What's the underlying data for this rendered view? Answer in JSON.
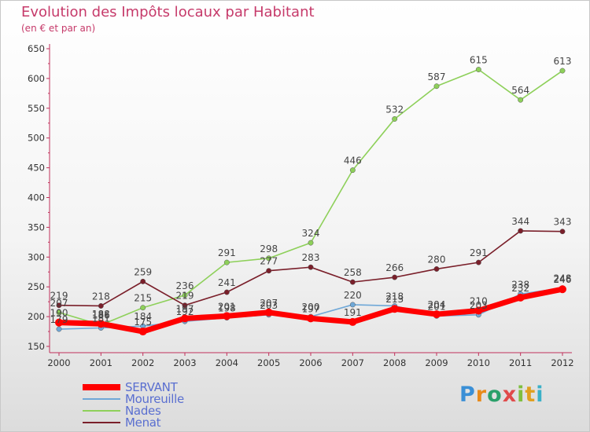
{
  "title": "Evolution des Impôts locaux par Habitant",
  "subtitle": "(en € et par an)",
  "logo_text": "Proxiti",
  "chart_data": {
    "type": "line",
    "title": "Evolution des Impôts locaux par Habitant",
    "subtitle": "(en € et par an)",
    "x": [
      "2000",
      "2001",
      "2002",
      "2003",
      "2004",
      "2005",
      "2006",
      "2007",
      "2008",
      "2009",
      "2010",
      "2011",
      "2012"
    ],
    "ylim": [
      150,
      650
    ],
    "yticks": [
      150,
      200,
      250,
      300,
      350,
      400,
      450,
      500,
      550,
      600,
      650
    ],
    "grid": false,
    "legend_position": "bottom-left",
    "series": [
      {
        "name": "SERVANT",
        "color": "#ff0000",
        "values": [
          190,
          188,
          175,
          197,
          201,
          207,
          197,
          191,
          213,
          204,
          210,
          232,
          246
        ]
      },
      {
        "name": "Moureuille",
        "color": "#6fa8d8",
        "values": [
          179,
          181,
          184,
          192,
          198,
          203,
          200,
          220,
          218,
          201,
          203,
          238,
          248
        ]
      },
      {
        "name": "Nades",
        "color": "#8ed05a",
        "values": [
          207,
          186,
          215,
          236,
          291,
          298,
          324,
          446,
          532,
          587,
          615,
          564,
          613
        ]
      },
      {
        "name": "Menat",
        "color": "#7a1f2a",
        "values": [
          219,
          218,
          259,
          219,
          241,
          277,
          283,
          258,
          266,
          280,
          291,
          344,
          343
        ]
      }
    ]
  }
}
